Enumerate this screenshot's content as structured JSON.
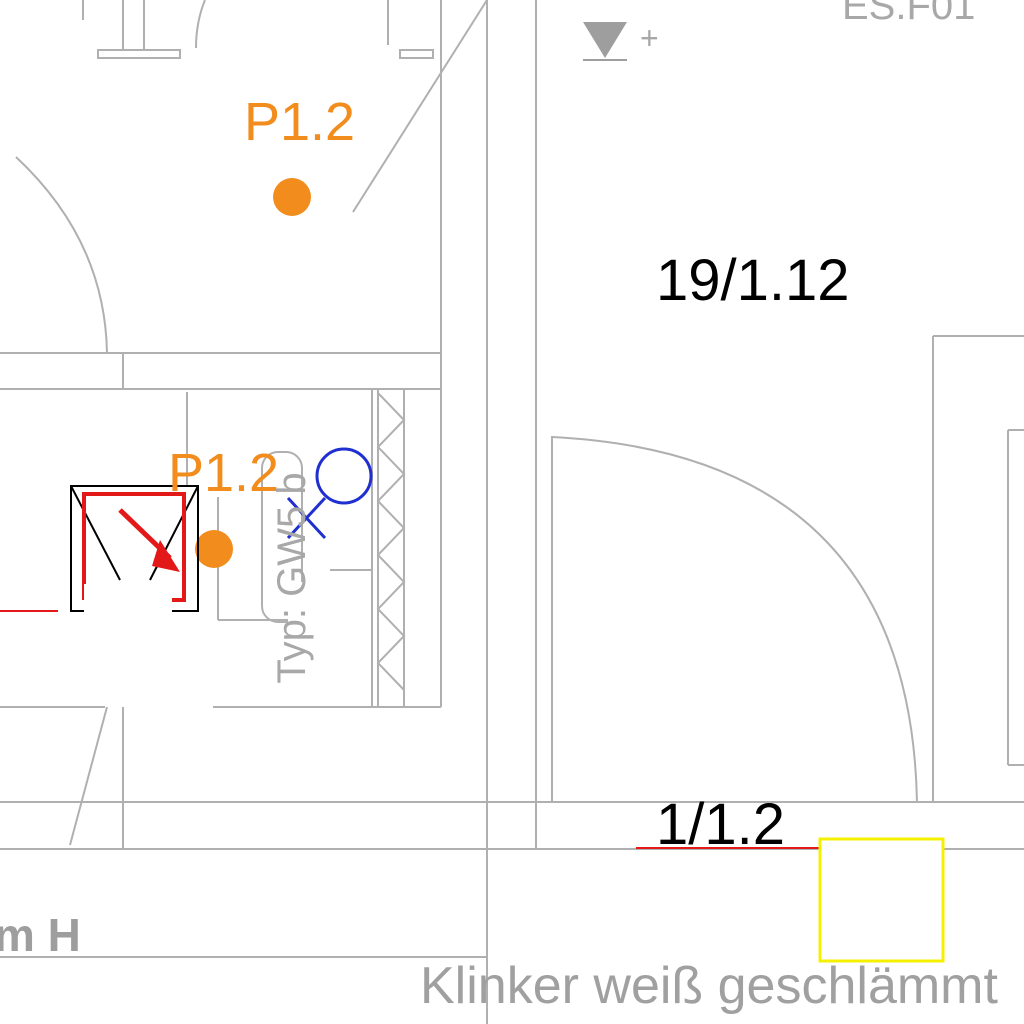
{
  "drawing": {
    "top_right_code": "ES.F01",
    "level_marker_sign": "+",
    "point_label_upper": "P1.2",
    "point_label_lower": "P1.2",
    "room_number": "19/1.12",
    "door_number": "1/1.2",
    "rotated_type_text": "Typ: GW5 b",
    "partial_text_left": "m H",
    "material_note": "Klinker weiß geschlämmt"
  },
  "colors": {
    "linework": "#b0b0b0",
    "point_marker": "#f28c1c",
    "symbol_red": "#e31818",
    "symbol_blue": "#1f2fd0",
    "highlight_yellow": "#f5f000",
    "text_black": "#000000"
  },
  "icons": {
    "level": "level-triangle-icon",
    "point": "point-marker-icon",
    "socket": "electrical-symbol-icon",
    "lamp": "lamp-symbol-icon"
  }
}
